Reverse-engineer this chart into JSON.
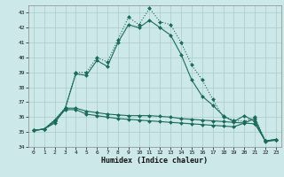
{
  "xlabel": "Humidex (Indice chaleur)",
  "bg_color": "#cce8e8",
  "grid_color": "#aacccc",
  "line_color": "#1a6b5a",
  "xlim": [
    -0.5,
    23.5
  ],
  "ylim": [
    34,
    43.5
  ],
  "yticks": [
    34,
    35,
    36,
    37,
    38,
    39,
    40,
    41,
    42,
    43
  ],
  "xticks": [
    0,
    1,
    2,
    3,
    4,
    5,
    6,
    7,
    8,
    9,
    10,
    11,
    12,
    13,
    14,
    15,
    16,
    17,
    18,
    19,
    20,
    21,
    22,
    23
  ],
  "series": [
    {
      "x": [
        0,
        1,
        2,
        3,
        4,
        5,
        6,
        7,
        8,
        9,
        10,
        11,
        12,
        13,
        14,
        15,
        16,
        17,
        18,
        19,
        20,
        21,
        22,
        23
      ],
      "y": [
        35.1,
        35.2,
        35.8,
        36.6,
        39.0,
        39.0,
        40.0,
        39.7,
        41.2,
        42.7,
        42.2,
        43.3,
        42.4,
        42.2,
        41.0,
        39.5,
        38.5,
        37.2,
        36.0,
        35.8,
        35.7,
        36.0,
        34.4,
        34.5
      ],
      "style": "dotted"
    },
    {
      "x": [
        0,
        1,
        2,
        3,
        4,
        5,
        6,
        7,
        8,
        9,
        10,
        11,
        12,
        13,
        14,
        15,
        16,
        17,
        18,
        19,
        20,
        21,
        22,
        23
      ],
      "y": [
        35.1,
        35.2,
        35.6,
        36.6,
        38.9,
        38.8,
        39.8,
        39.4,
        41.0,
        42.2,
        42.0,
        42.5,
        42.0,
        41.5,
        40.2,
        38.5,
        37.4,
        36.8,
        36.1,
        35.7,
        36.1,
        35.7,
        34.4,
        34.5
      ],
      "style": "solid"
    },
    {
      "x": [
        0,
        1,
        2,
        3,
        4,
        5,
        6,
        7,
        8,
        9,
        10,
        11,
        12,
        13,
        14,
        15,
        16,
        17,
        18,
        19,
        20,
        21,
        22,
        23
      ],
      "y": [
        35.1,
        35.2,
        35.8,
        36.6,
        36.6,
        36.4,
        36.3,
        36.2,
        36.15,
        36.1,
        36.1,
        36.1,
        36.05,
        36.0,
        35.9,
        35.85,
        35.8,
        35.75,
        35.7,
        35.65,
        35.6,
        35.55,
        34.4,
        34.5
      ],
      "style": "solid"
    },
    {
      "x": [
        0,
        1,
        2,
        3,
        4,
        5,
        6,
        7,
        8,
        9,
        10,
        11,
        12,
        13,
        14,
        15,
        16,
        17,
        18,
        19,
        20,
        21,
        22,
        23
      ],
      "y": [
        35.1,
        35.2,
        35.7,
        36.5,
        36.5,
        36.2,
        36.1,
        36.0,
        35.9,
        35.85,
        35.8,
        35.75,
        35.7,
        35.65,
        35.6,
        35.55,
        35.5,
        35.45,
        35.4,
        35.35,
        35.6,
        35.9,
        34.35,
        34.45
      ],
      "style": "solid"
    }
  ]
}
